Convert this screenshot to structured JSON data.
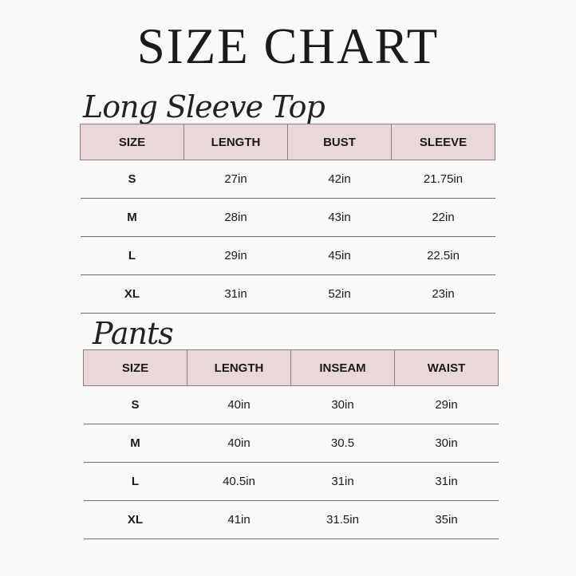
{
  "title": "SIZE CHART",
  "sections": [
    {
      "heading": "Long Sleeve Top",
      "columns": [
        "SIZE",
        "LENGTH",
        "BUST",
        "SLEEVE"
      ],
      "rows": [
        [
          "S",
          "27in",
          "42in",
          "21.75in"
        ],
        [
          "M",
          "28in",
          "43in",
          "22in"
        ],
        [
          "L",
          "29in",
          "45in",
          "22.5in"
        ],
        [
          "XL",
          "31in",
          "52in",
          "23in"
        ]
      ]
    },
    {
      "heading": "Pants",
      "columns": [
        "SIZE",
        "LENGTH",
        "INSEAM",
        "WAIST"
      ],
      "rows": [
        [
          "S",
          "40in",
          "30in",
          "29in"
        ],
        [
          "M",
          "40in",
          "30.5",
          "30in"
        ],
        [
          "L",
          "40.5in",
          "31in",
          "31in"
        ],
        [
          "XL",
          "41in",
          "31.5in",
          "35in"
        ]
      ]
    }
  ],
  "colors": {
    "header_fill": "#ead8d8",
    "background": "#faf9f7"
  }
}
